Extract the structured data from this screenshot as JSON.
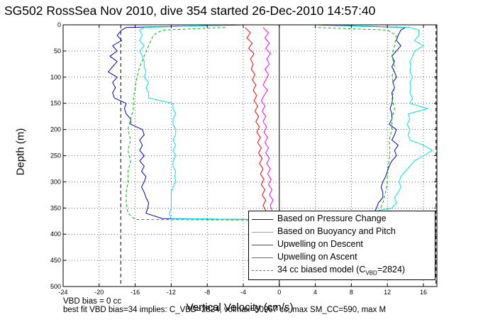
{
  "header": {
    "title": "SG502 RossSea Nov 2010, dive 354 started 26-Dec-2010 14:57:40"
  },
  "notes": {
    "bias_line": "VBD bias = 0 cc",
    "fit_line": "best fit VBD bias=34 implies: C_VBD=2824, volmax=50967 cc, max SM_CC=590, max M"
  },
  "colors": {
    "pressure": "#0000cc",
    "buoyancy": "#00e5e5",
    "upwell_descent": "#ff0000",
    "upwell_ascent": "#ff00ff",
    "biased_model": "#00bb00"
  },
  "chart_data": {
    "type": "line",
    "title": "SG502 RossSea Nov 2010, dive 354 started 26-Dec-2010 14:57:40",
    "xlabel": "Vertical Velocity (cm/s)",
    "ylabel": "Depth (m)",
    "xlim": [
      -24,
      17.5
    ],
    "ylim": [
      500,
      0
    ],
    "y_reversed": true,
    "grid": true,
    "xticks": [
      -24,
      -20,
      -16,
      -12,
      -8,
      -4,
      0,
      4,
      8,
      12,
      16
    ],
    "yticks": [
      0,
      50,
      100,
      150,
      200,
      250,
      300,
      350,
      400,
      450,
      500
    ],
    "vertical_lines": [
      {
        "x": -17.6,
        "style": "dashed",
        "color": "#000000"
      },
      {
        "x": 0,
        "style": "solid",
        "color": "#000000"
      },
      {
        "x": 17.4,
        "style": "dashed",
        "color": "#000000"
      }
    ],
    "legend_position": "bottom-right",
    "legend": [
      {
        "label": "Based on Pressure Change",
        "color": "#0000cc",
        "style": "solid"
      },
      {
        "label": "Based on Buoyancy and Pitch",
        "color": "#00e5e5",
        "style": "solid"
      },
      {
        "label": "Upwelling on Descent",
        "color": "#ff0000",
        "style": "solid"
      },
      {
        "label": "Upwelling on Ascent",
        "color": "#ff00ff",
        "style": "solid"
      },
      {
        "label": "34 cc biased model (C",
        "sub": "VBD",
        "suffix": "=2824)",
        "color": "#00bb00",
        "style": "dashed"
      }
    ],
    "series": [
      {
        "name": "Based on Pressure Change",
        "color": "#0000cc",
        "style": "solid",
        "points": [
          [
            -4,
            0
          ],
          [
            -17,
            5
          ],
          [
            -17.5,
            10
          ],
          [
            -18,
            20
          ],
          [
            -17.5,
            30
          ],
          [
            -18.5,
            40
          ],
          [
            -18,
            50
          ],
          [
            -18.8,
            60
          ],
          [
            -18,
            70
          ],
          [
            -18.5,
            80
          ],
          [
            -19,
            90
          ],
          [
            -18,
            100
          ],
          [
            -18.5,
            110
          ],
          [
            -18.2,
            120
          ],
          [
            -18.5,
            130
          ],
          [
            -18.3,
            140
          ],
          [
            -17,
            150
          ],
          [
            -17.2,
            160
          ],
          [
            -17,
            170
          ],
          [
            -16.5,
            180
          ],
          [
            -16.5,
            190
          ],
          [
            -15.2,
            200
          ],
          [
            -15,
            210
          ],
          [
            -15.5,
            220
          ],
          [
            -15.2,
            230
          ],
          [
            -15.5,
            240
          ],
          [
            -15,
            250
          ],
          [
            -15.5,
            260
          ],
          [
            -15,
            270
          ],
          [
            -15.3,
            280
          ],
          [
            -14.8,
            290
          ],
          [
            -15,
            300
          ],
          [
            -15.3,
            310
          ],
          [
            -15,
            320
          ],
          [
            -14.8,
            330
          ],
          [
            -14.5,
            340
          ],
          [
            -14.6,
            350
          ],
          [
            -14.8,
            360
          ],
          [
            -13,
            370
          ],
          [
            -3,
            372
          ],
          [
            -0.2,
            374
          ],
          [
            10.5,
            360
          ],
          [
            10.8,
            350
          ],
          [
            11,
            340
          ],
          [
            11.5,
            330
          ],
          [
            11.5,
            320
          ],
          [
            11.3,
            310
          ],
          [
            11.5,
            300
          ],
          [
            11.8,
            290
          ],
          [
            12,
            280
          ],
          [
            12.2,
            270
          ],
          [
            12.5,
            260
          ],
          [
            13,
            250
          ],
          [
            12.8,
            240
          ],
          [
            13.2,
            230
          ],
          [
            12.5,
            220
          ],
          [
            12.8,
            210
          ],
          [
            13,
            200
          ],
          [
            12.2,
            190
          ],
          [
            12.5,
            180
          ],
          [
            12.5,
            170
          ],
          [
            12.3,
            160
          ],
          [
            12.5,
            150
          ],
          [
            12.6,
            140
          ],
          [
            12.5,
            130
          ],
          [
            12.8,
            120
          ],
          [
            12.6,
            110
          ],
          [
            13,
            100
          ],
          [
            12.8,
            90
          ],
          [
            12.5,
            80
          ],
          [
            12.8,
            70
          ],
          [
            12.5,
            60
          ],
          [
            13,
            50
          ],
          [
            13.5,
            40
          ],
          [
            13,
            30
          ],
          [
            13.2,
            20
          ],
          [
            13.5,
            10
          ],
          [
            14,
            5
          ],
          [
            4,
            0
          ]
        ]
      },
      {
        "name": "Based on Buoyancy and Pitch",
        "color": "#00e5e5",
        "style": "solid",
        "points": [
          [
            -5,
            0
          ],
          [
            -15,
            5
          ],
          [
            -15.5,
            10
          ],
          [
            -15.2,
            20
          ],
          [
            -15.5,
            30
          ],
          [
            -15,
            40
          ],
          [
            -15.5,
            50
          ],
          [
            -15.2,
            60
          ],
          [
            -15,
            70
          ],
          [
            -15,
            80
          ],
          [
            -14.8,
            90
          ],
          [
            -15,
            100
          ],
          [
            -14.5,
            110
          ],
          [
            -14.8,
            120
          ],
          [
            -14.5,
            130
          ],
          [
            -14.5,
            140
          ],
          [
            -11.8,
            150
          ],
          [
            -11.8,
            160
          ],
          [
            -11.5,
            170
          ],
          [
            -11.8,
            180
          ],
          [
            -11.8,
            190
          ],
          [
            -11.5,
            200
          ],
          [
            -11.5,
            210
          ],
          [
            -11.8,
            220
          ],
          [
            -11.5,
            230
          ],
          [
            -11.8,
            240
          ],
          [
            -11.5,
            250
          ],
          [
            -11.8,
            260
          ],
          [
            -11.8,
            270
          ],
          [
            -11.5,
            280
          ],
          [
            -11.6,
            290
          ],
          [
            -11.5,
            300
          ],
          [
            -11.8,
            310
          ],
          [
            -12,
            320
          ],
          [
            -12,
            330
          ],
          [
            -12,
            340
          ],
          [
            -12,
            350
          ],
          [
            -12.2,
            360
          ],
          [
            -12,
            370
          ],
          [
            -3,
            372
          ],
          [
            -0.3,
            373
          ],
          [
            10.5,
            362
          ],
          [
            11,
            355
          ],
          [
            12.5,
            350
          ],
          [
            13,
            340
          ],
          [
            12.8,
            330
          ],
          [
            13.2,
            320
          ],
          [
            13.5,
            310
          ],
          [
            13.3,
            300
          ],
          [
            13.5,
            290
          ],
          [
            14,
            280
          ],
          [
            14.5,
            270
          ],
          [
            15,
            260
          ],
          [
            16,
            250
          ],
          [
            17,
            240
          ],
          [
            16,
            230
          ],
          [
            14.5,
            220
          ],
          [
            14.3,
            210
          ],
          [
            14.5,
            200
          ],
          [
            14.2,
            190
          ],
          [
            14.5,
            180
          ],
          [
            14.3,
            170
          ],
          [
            16.5,
            160
          ],
          [
            14.5,
            150
          ],
          [
            14.8,
            140
          ],
          [
            14.5,
            130
          ],
          [
            14.6,
            120
          ],
          [
            14.5,
            110
          ],
          [
            14.8,
            100
          ],
          [
            14.5,
            90
          ],
          [
            14.6,
            80
          ],
          [
            14.5,
            70
          ],
          [
            14.8,
            60
          ],
          [
            15,
            50
          ],
          [
            16,
            40
          ],
          [
            15,
            30
          ],
          [
            15.5,
            20
          ],
          [
            15.5,
            10
          ],
          [
            14.5,
            5
          ],
          [
            5,
            0
          ]
        ]
      },
      {
        "name": "Upwelling on Descent",
        "color": "#ff0000",
        "style": "solid",
        "points": [
          [
            -3.8,
            5
          ],
          [
            -3.2,
            15
          ],
          [
            -3.6,
            25
          ],
          [
            -3,
            35
          ],
          [
            -3.4,
            45
          ],
          [
            -2.8,
            55
          ],
          [
            -3.2,
            65
          ],
          [
            -2.9,
            75
          ],
          [
            -3.1,
            85
          ],
          [
            -2.7,
            95
          ],
          [
            -3,
            105
          ],
          [
            -2.6,
            115
          ],
          [
            -2.9,
            125
          ],
          [
            -2.5,
            135
          ],
          [
            -2.8,
            145
          ],
          [
            -2.4,
            155
          ],
          [
            -2.7,
            165
          ],
          [
            -2.3,
            175
          ],
          [
            -2.6,
            185
          ],
          [
            -2.2,
            195
          ],
          [
            -2.5,
            205
          ],
          [
            -2.1,
            215
          ],
          [
            -2.4,
            225
          ],
          [
            -2,
            235
          ],
          [
            -2.3,
            245
          ],
          [
            -1.9,
            255
          ],
          [
            -2.2,
            265
          ],
          [
            -1.8,
            275
          ],
          [
            -2.1,
            285
          ],
          [
            -1.7,
            295
          ],
          [
            -2,
            305
          ],
          [
            -1.6,
            315
          ],
          [
            -1.9,
            325
          ],
          [
            -1.5,
            335
          ],
          [
            -1.8,
            345
          ],
          [
            -1.5,
            355
          ],
          [
            -1.7,
            365
          ],
          [
            -1.6,
            372
          ]
        ]
      },
      {
        "name": "Upwelling on Ascent",
        "color": "#ff00ff",
        "style": "solid",
        "points": [
          [
            -1.8,
            5
          ],
          [
            -1.2,
            15
          ],
          [
            -1.6,
            25
          ],
          [
            -1.1,
            35
          ],
          [
            -1.5,
            45
          ],
          [
            -1,
            55
          ],
          [
            -1.4,
            65
          ],
          [
            -1.1,
            75
          ],
          [
            -1.6,
            85
          ],
          [
            -1.2,
            95
          ],
          [
            -1.5,
            105
          ],
          [
            -1.8,
            115
          ],
          [
            -1.3,
            125
          ],
          [
            -1.7,
            135
          ],
          [
            -2,
            145
          ],
          [
            -1.6,
            155
          ],
          [
            -1.9,
            165
          ],
          [
            -1.5,
            175
          ],
          [
            -1.8,
            185
          ],
          [
            -1.4,
            195
          ],
          [
            -1.7,
            205
          ],
          [
            -1.3,
            215
          ],
          [
            -1.6,
            225
          ],
          [
            -1.2,
            235
          ],
          [
            -1.5,
            245
          ],
          [
            -1.1,
            255
          ],
          [
            -1.4,
            265
          ],
          [
            -1,
            275
          ],
          [
            -1.3,
            285
          ],
          [
            -0.9,
            295
          ],
          [
            -1.2,
            305
          ],
          [
            -0.8,
            315
          ],
          [
            -1.1,
            325
          ],
          [
            -0.7,
            335
          ],
          [
            -1,
            345
          ],
          [
            -0.8,
            355
          ],
          [
            -1,
            362
          ]
        ]
      },
      {
        "name": "34 cc biased model (CVBD=2824)",
        "color": "#00bb00",
        "style": "dashed",
        "points": [
          [
            -6,
            5
          ],
          [
            -13,
            10
          ],
          [
            -14,
            20
          ],
          [
            -14.5,
            40
          ],
          [
            -15,
            60
          ],
          [
            -15.5,
            80
          ],
          [
            -15.8,
            100
          ],
          [
            -16,
            120
          ],
          [
            -16.2,
            140
          ],
          [
            -16.2,
            160
          ],
          [
            -16.5,
            180
          ],
          [
            -16.8,
            200
          ],
          [
            -16.5,
            220
          ],
          [
            -16.8,
            240
          ],
          [
            -16.5,
            260
          ],
          [
            -16.8,
            280
          ],
          [
            -16.8,
            300
          ],
          [
            -17,
            320
          ],
          [
            -17,
            340
          ],
          [
            -16.8,
            360
          ],
          [
            -16,
            372
          ],
          [
            -1,
            373
          ],
          [
            11,
            360
          ],
          [
            11.5,
            340
          ],
          [
            11.8,
            320
          ],
          [
            12,
            300
          ],
          [
            12,
            280
          ],
          [
            12.2,
            260
          ],
          [
            12.3,
            240
          ],
          [
            12.2,
            220
          ],
          [
            12.5,
            200
          ],
          [
            12.5,
            180
          ],
          [
            12.8,
            160
          ],
          [
            12.5,
            140
          ],
          [
            12.8,
            120
          ],
          [
            12.5,
            100
          ],
          [
            12.8,
            80
          ],
          [
            12.5,
            60
          ],
          [
            12.8,
            40
          ],
          [
            13,
            20
          ],
          [
            12,
            10
          ],
          [
            4,
            5
          ]
        ]
      }
    ]
  }
}
